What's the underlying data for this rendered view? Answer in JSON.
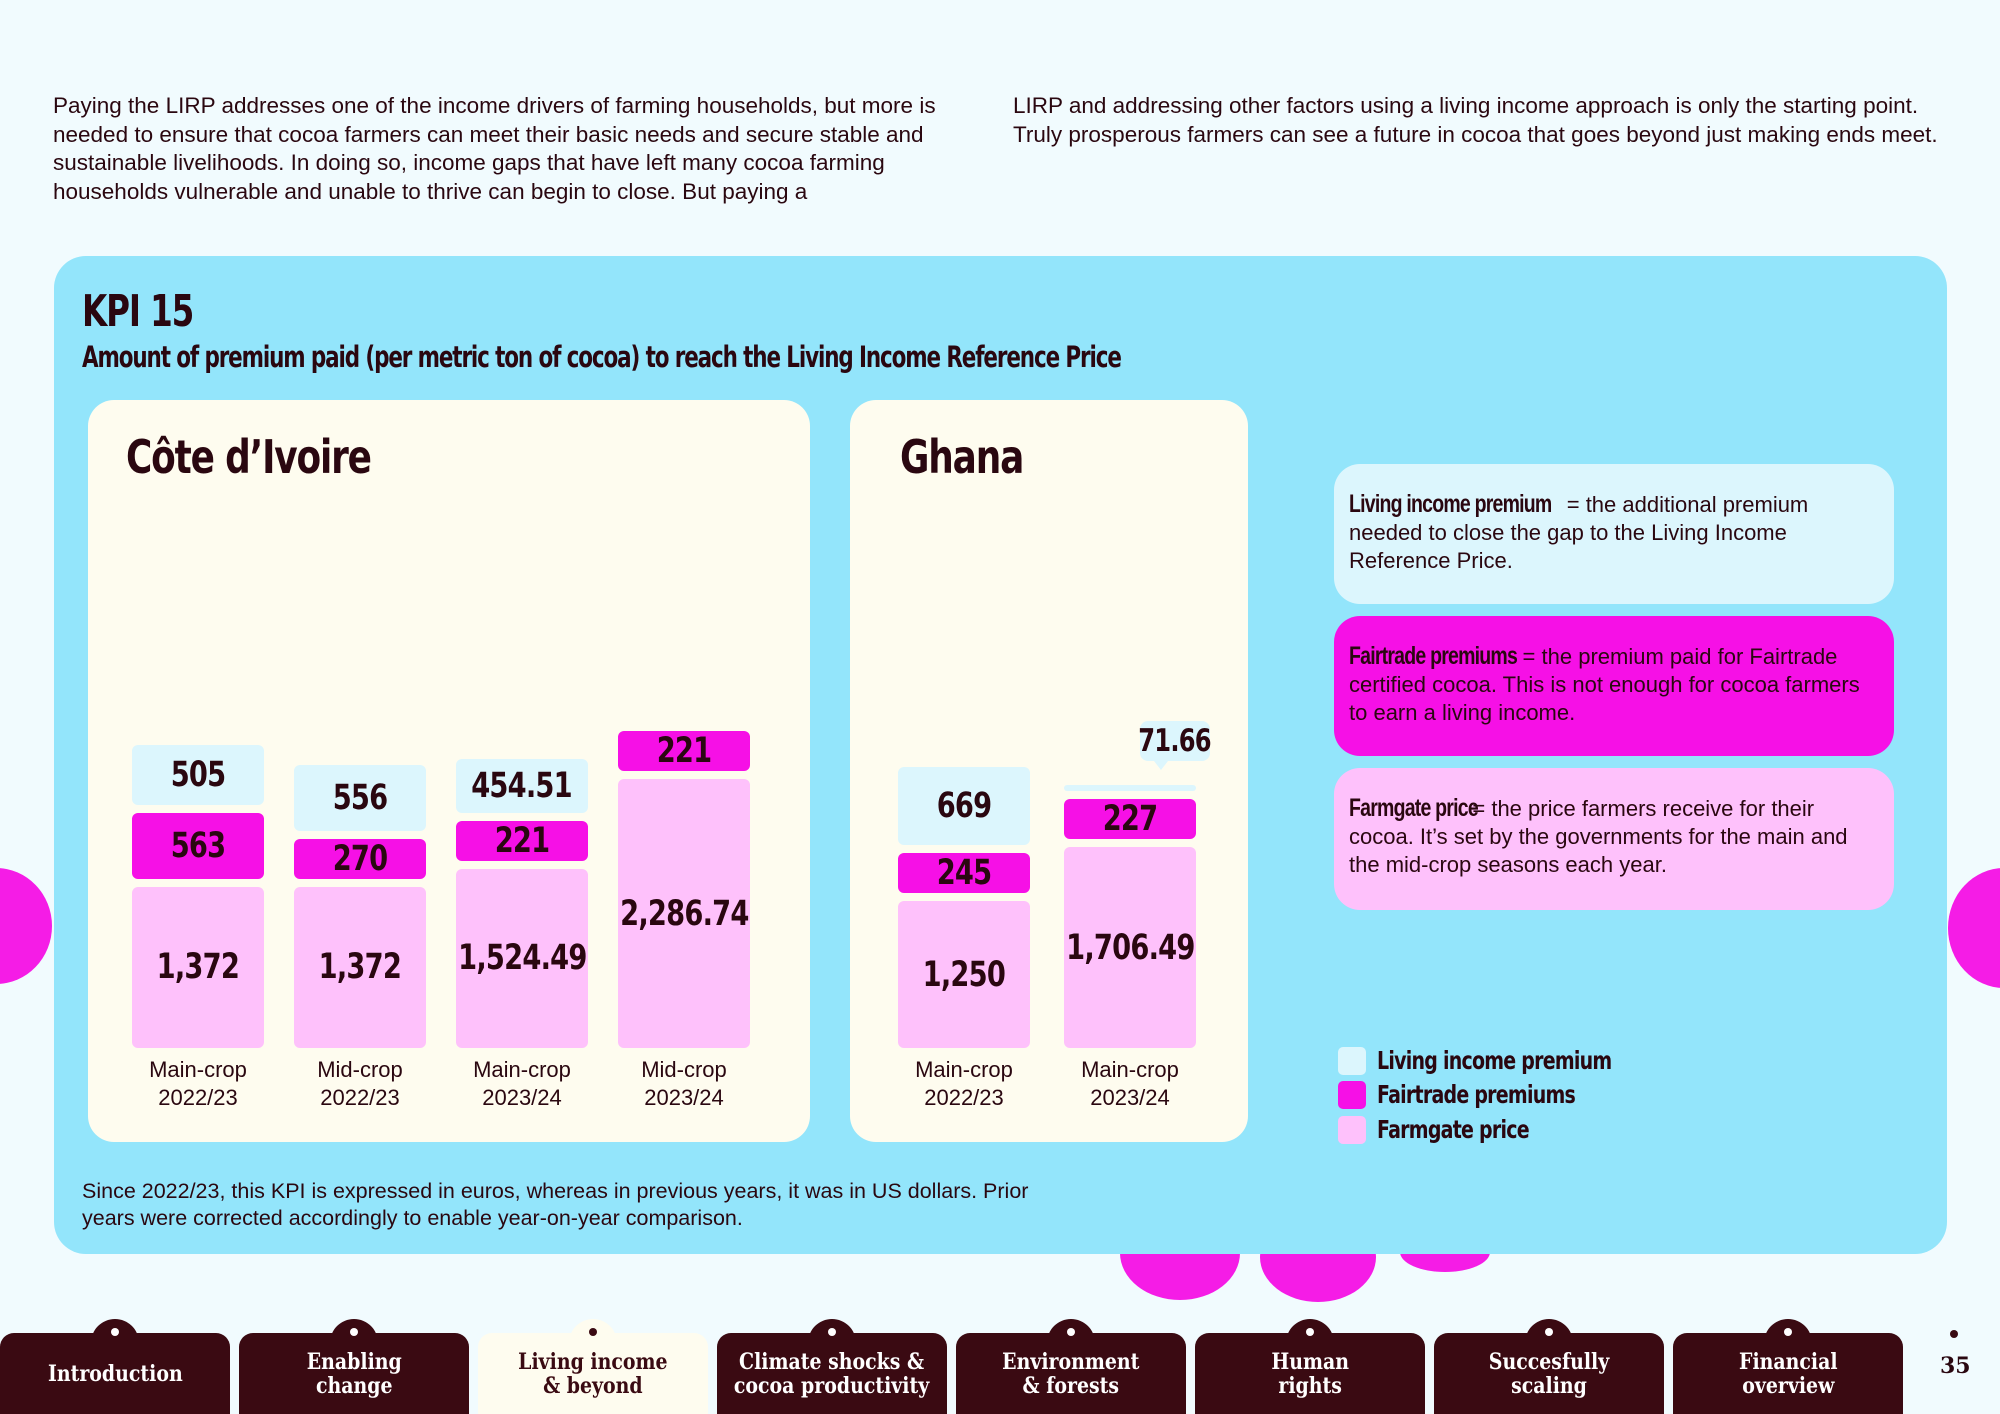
{
  "intro": {
    "left": "Paying the LIRP addresses one of the income drivers of farming households, but more is needed to ensure that cocoa farmers can meet their basic needs and secure stable and sustainable livelihoods. In doing so, income gaps that have left many cocoa farming households vulnerable and unable to thrive can begin to close. But paying a",
    "right": "LIRP and addressing other factors using a living income approach is only the starting point. Truly prosperous farmers can see a future in cocoa that goes beyond just making ends meet."
  },
  "kpi": {
    "title": "KPI 15",
    "subtitle": "Amount of premium paid (per metric ton of cocoa) to reach the Living Income Reference Price"
  },
  "colors": {
    "living_income_premium": "#dcf6fd",
    "fairtrade_premiums": "#f610e6",
    "farmgate_price": "#fec1fb",
    "panel": "#93e5fb",
    "dark": "#3a0a12"
  },
  "chart_data": [
    {
      "type": "bar",
      "stacked": true,
      "title": "Côte d’Ivoire",
      "categories": [
        "Main-crop\n2022/23",
        "Mid-crop\n2022/23",
        "Main-crop\n2023/24",
        "Mid-crop\n2023/24"
      ],
      "series": [
        {
          "name": "Farmgate price",
          "values": [
            1372,
            1372,
            1524.49,
            2286.74
          ],
          "labels": [
            "1,372",
            "1,372",
            "1,524.49",
            "2,286.74"
          ]
        },
        {
          "name": "Fairtrade premiums",
          "values": [
            563,
            270,
            221,
            221
          ],
          "labels": [
            "563",
            "270",
            "221",
            "221"
          ]
        },
        {
          "name": "Living income premium",
          "values": [
            505,
            556,
            454.51,
            0
          ],
          "labels": [
            "505",
            "556",
            "454.51",
            ""
          ]
        }
      ]
    },
    {
      "type": "bar",
      "stacked": true,
      "title": "Ghana",
      "categories": [
        "Main-crop\n2022/23",
        "Main-crop\n2023/24"
      ],
      "series": [
        {
          "name": "Farmgate price",
          "values": [
            1250,
            1706.49
          ],
          "labels": [
            "1,250",
            "1,706.49"
          ]
        },
        {
          "name": "Fairtrade premiums",
          "values": [
            245,
            227
          ],
          "labels": [
            "245",
            "227"
          ]
        },
        {
          "name": "Living income premium",
          "values": [
            669,
            71.66
          ],
          "labels": [
            "669",
            "71.66"
          ]
        }
      ]
    }
  ],
  "definitions": [
    {
      "term": "Living income premium",
      "text": "= the additional premium needed to close the gap to the Living Income Reference Price."
    },
    {
      "term": "Fairtrade premiums",
      "text": "= the premium paid for Fairtrade certified cocoa. This is not enough for cocoa farmers to earn a living income."
    },
    {
      "term": "Farmgate price",
      "text": "= the price farmers receive for their cocoa. It’s set by the governments for the main and the mid-crop seasons each year."
    }
  ],
  "legend": [
    "Living income premium",
    "Fairtrade premiums",
    "Farmgate price"
  ],
  "footnote": "Since 2022/23, this KPI is expressed in euros, whereas in previous years, it was in US dollars. Prior years were corrected accordingly to enable year-on-year comparison.",
  "nav": {
    "tabs": [
      "Introduction",
      "Enabling\nchange",
      "Living income\n& beyond",
      "Climate shocks &\ncocoa productivity",
      "Environment\n& forests",
      "Human\nrights",
      "Succesfully\nscaling",
      "Financial\noverview"
    ],
    "active_index": 2,
    "page_number": "35"
  }
}
